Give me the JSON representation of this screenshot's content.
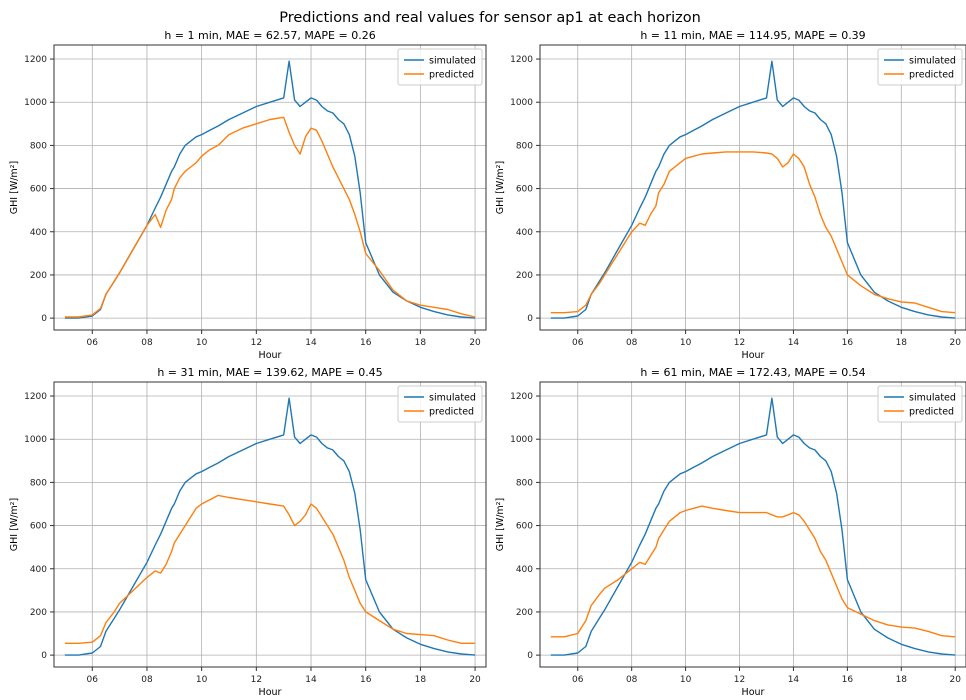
{
  "figure": {
    "title": "Predictions and real values for sensor ap1 at each horizon"
  },
  "colors": {
    "simulated": "#1f77b4",
    "predicted": "#ff7f0e",
    "grid": "#b0b0b0"
  },
  "chart_data": [
    {
      "type": "line",
      "title": "h = 1 min, MAE = 62.57, MAPE = 0.26",
      "xlabel": "Hour",
      "ylabel": "GHI [W/m²]",
      "xlim": [
        4.6,
        20.4
      ],
      "ylim": [
        -55,
        1265
      ],
      "xticks": [
        6,
        8,
        10,
        12,
        14,
        16,
        18,
        20
      ],
      "xticklabels": [
        "06",
        "08",
        "10",
        "12",
        "14",
        "16",
        "18",
        "20"
      ],
      "yticks": [
        0,
        200,
        400,
        600,
        800,
        1000,
        1200
      ],
      "grid": true,
      "legend": "top-right",
      "series": [
        {
          "name": "simulated",
          "x": [
            5,
            5.5,
            6,
            6.3,
            6.5,
            6.8,
            7,
            7.5,
            8,
            8.3,
            8.5,
            8.7,
            8.9,
            9,
            9.2,
            9.4,
            9.6,
            9.8,
            10,
            10.3,
            10.6,
            11,
            11.5,
            12,
            12.5,
            13,
            13.2,
            13.4,
            13.6,
            13.8,
            14,
            14.2,
            14.4,
            14.6,
            14.8,
            15,
            15.2,
            15.4,
            15.6,
            15.8,
            16,
            16.5,
            17,
            17.5,
            18,
            18.5,
            19,
            19.5,
            20
          ],
          "y": [
            0,
            0,
            10,
            40,
            110,
            170,
            210,
            320,
            430,
            510,
            560,
            620,
            680,
            700,
            760,
            800,
            820,
            840,
            850,
            870,
            890,
            920,
            950,
            980,
            1000,
            1020,
            1190,
            1010,
            980,
            1000,
            1020,
            1010,
            980,
            960,
            950,
            920,
            900,
            850,
            750,
            580,
            350,
            200,
            120,
            80,
            50,
            30,
            15,
            5,
            0
          ]
        },
        {
          "name": "predicted",
          "x": [
            5,
            5.5,
            6,
            6.3,
            6.5,
            6.8,
            7,
            7.5,
            8,
            8.3,
            8.5,
            8.7,
            8.9,
            9,
            9.2,
            9.4,
            9.6,
            9.8,
            10,
            10.3,
            10.6,
            11,
            11.5,
            12,
            12.5,
            13,
            13.2,
            13.4,
            13.6,
            13.8,
            14,
            14.2,
            14.4,
            14.6,
            14.8,
            15,
            15.2,
            15.4,
            15.6,
            15.8,
            16,
            16.5,
            17,
            17.5,
            18,
            18.5,
            19,
            19.5,
            20
          ],
          "y": [
            5,
            5,
            15,
            45,
            110,
            170,
            210,
            320,
            430,
            480,
            420,
            500,
            550,
            600,
            650,
            680,
            700,
            720,
            750,
            780,
            800,
            850,
            880,
            900,
            920,
            930,
            860,
            800,
            760,
            840,
            880,
            870,
            820,
            760,
            700,
            650,
            600,
            550,
            480,
            400,
            300,
            220,
            130,
            80,
            60,
            50,
            40,
            20,
            5
          ]
        }
      ]
    },
    {
      "type": "line",
      "title": "h = 11 min, MAE = 114.95, MAPE = 0.39",
      "xlabel": "Hour",
      "ylabel": "GHI [W/m²]",
      "xlim": [
        4.6,
        20.4
      ],
      "ylim": [
        -55,
        1265
      ],
      "xticks": [
        6,
        8,
        10,
        12,
        14,
        16,
        18,
        20
      ],
      "xticklabels": [
        "06",
        "08",
        "10",
        "12",
        "14",
        "16",
        "18",
        "20"
      ],
      "yticks": [
        0,
        200,
        400,
        600,
        800,
        1000,
        1200
      ],
      "grid": true,
      "legend": "top-right",
      "series": [
        {
          "name": "simulated",
          "x": [
            5,
            5.5,
            6,
            6.3,
            6.5,
            6.8,
            7,
            7.5,
            8,
            8.3,
            8.5,
            8.7,
            8.9,
            9,
            9.2,
            9.4,
            9.6,
            9.8,
            10,
            10.3,
            10.6,
            11,
            11.5,
            12,
            12.5,
            13,
            13.2,
            13.4,
            13.6,
            13.8,
            14,
            14.2,
            14.4,
            14.6,
            14.8,
            15,
            15.2,
            15.4,
            15.6,
            15.8,
            16,
            16.5,
            17,
            17.5,
            18,
            18.5,
            19,
            19.5,
            20
          ],
          "y": [
            0,
            0,
            10,
            40,
            110,
            170,
            210,
            320,
            430,
            510,
            560,
            620,
            680,
            700,
            760,
            800,
            820,
            840,
            850,
            870,
            890,
            920,
            950,
            980,
            1000,
            1020,
            1190,
            1010,
            980,
            1000,
            1020,
            1010,
            980,
            960,
            950,
            920,
            900,
            850,
            750,
            580,
            350,
            200,
            120,
            80,
            50,
            30,
            15,
            5,
            0
          ]
        },
        {
          "name": "predicted",
          "x": [
            5,
            5.5,
            6,
            6.3,
            6.5,
            6.8,
            7,
            7.5,
            8,
            8.3,
            8.5,
            8.7,
            8.9,
            9,
            9.2,
            9.4,
            9.6,
            9.8,
            10,
            10.3,
            10.6,
            11,
            11.5,
            12,
            12.5,
            13,
            13.2,
            13.4,
            13.6,
            13.8,
            14,
            14.2,
            14.4,
            14.6,
            14.8,
            15,
            15.2,
            15.4,
            15.6,
            15.8,
            16,
            16.5,
            17,
            17.5,
            18,
            18.5,
            19,
            19.5,
            20
          ],
          "y": [
            25,
            25,
            30,
            60,
            110,
            160,
            200,
            300,
            400,
            440,
            430,
            480,
            520,
            580,
            620,
            680,
            700,
            720,
            740,
            750,
            760,
            765,
            770,
            770,
            770,
            765,
            760,
            740,
            700,
            720,
            760,
            740,
            700,
            620,
            560,
            480,
            420,
            380,
            320,
            260,
            200,
            150,
            110,
            90,
            75,
            70,
            50,
            30,
            25
          ]
        }
      ]
    },
    {
      "type": "line",
      "title": "h = 31 min, MAE = 139.62, MAPE = 0.45",
      "xlabel": "Hour",
      "ylabel": "GHI [W/m²]",
      "xlim": [
        4.6,
        20.4
      ],
      "ylim": [
        -55,
        1265
      ],
      "xticks": [
        6,
        8,
        10,
        12,
        14,
        16,
        18,
        20
      ],
      "xticklabels": [
        "06",
        "08",
        "10",
        "12",
        "14",
        "16",
        "18",
        "20"
      ],
      "yticks": [
        0,
        200,
        400,
        600,
        800,
        1000,
        1200
      ],
      "grid": true,
      "legend": "top-right",
      "series": [
        {
          "name": "simulated",
          "x": [
            5,
            5.5,
            6,
            6.3,
            6.5,
            6.8,
            7,
            7.5,
            8,
            8.3,
            8.5,
            8.7,
            8.9,
            9,
            9.2,
            9.4,
            9.6,
            9.8,
            10,
            10.3,
            10.6,
            11,
            11.5,
            12,
            12.5,
            13,
            13.2,
            13.4,
            13.6,
            13.8,
            14,
            14.2,
            14.4,
            14.6,
            14.8,
            15,
            15.2,
            15.4,
            15.6,
            15.8,
            16,
            16.5,
            17,
            17.5,
            18,
            18.5,
            19,
            19.5,
            20
          ],
          "y": [
            0,
            0,
            10,
            40,
            110,
            170,
            210,
            320,
            430,
            510,
            560,
            620,
            680,
            700,
            760,
            800,
            820,
            840,
            850,
            870,
            890,
            920,
            950,
            980,
            1000,
            1020,
            1190,
            1010,
            980,
            1000,
            1020,
            1010,
            980,
            960,
            950,
            920,
            900,
            850,
            750,
            580,
            350,
            200,
            120,
            80,
            50,
            30,
            15,
            5,
            0
          ]
        },
        {
          "name": "predicted",
          "x": [
            5,
            5.5,
            6,
            6.3,
            6.5,
            6.8,
            7,
            7.5,
            8,
            8.3,
            8.5,
            8.7,
            8.9,
            9,
            9.2,
            9.4,
            9.6,
            9.8,
            10,
            10.3,
            10.6,
            11,
            11.5,
            12,
            12.5,
            13,
            13.2,
            13.4,
            13.6,
            13.8,
            14,
            14.2,
            14.4,
            14.6,
            14.8,
            15,
            15.2,
            15.4,
            15.6,
            15.8,
            16,
            16.5,
            17,
            17.5,
            18,
            18.5,
            19,
            19.5,
            20
          ],
          "y": [
            55,
            55,
            60,
            90,
            150,
            200,
            240,
            300,
            360,
            390,
            380,
            420,
            480,
            520,
            560,
            600,
            640,
            680,
            700,
            720,
            740,
            730,
            720,
            710,
            700,
            690,
            650,
            600,
            620,
            650,
            700,
            680,
            640,
            600,
            560,
            500,
            440,
            360,
            300,
            240,
            200,
            160,
            120,
            100,
            95,
            90,
            70,
            55,
            55
          ]
        }
      ]
    },
    {
      "type": "line",
      "title": "h = 61 min, MAE = 172.43, MAPE = 0.54",
      "xlabel": "Hour",
      "ylabel": "GHI [W/m²]",
      "xlim": [
        4.6,
        20.4
      ],
      "ylim": [
        -55,
        1265
      ],
      "xticks": [
        6,
        8,
        10,
        12,
        14,
        16,
        18,
        20
      ],
      "xticklabels": [
        "06",
        "08",
        "10",
        "12",
        "14",
        "16",
        "18",
        "20"
      ],
      "yticks": [
        0,
        200,
        400,
        600,
        800,
        1000,
        1200
      ],
      "grid": true,
      "legend": "top-right",
      "series": [
        {
          "name": "simulated",
          "x": [
            5,
            5.5,
            6,
            6.3,
            6.5,
            6.8,
            7,
            7.5,
            8,
            8.3,
            8.5,
            8.7,
            8.9,
            9,
            9.2,
            9.4,
            9.6,
            9.8,
            10,
            10.3,
            10.6,
            11,
            11.5,
            12,
            12.5,
            13,
            13.2,
            13.4,
            13.6,
            13.8,
            14,
            14.2,
            14.4,
            14.6,
            14.8,
            15,
            15.2,
            15.4,
            15.6,
            15.8,
            16,
            16.5,
            17,
            17.5,
            18,
            18.5,
            19,
            19.5,
            20
          ],
          "y": [
            0,
            0,
            10,
            40,
            110,
            170,
            210,
            320,
            430,
            510,
            560,
            620,
            680,
            700,
            760,
            800,
            820,
            840,
            850,
            870,
            890,
            920,
            950,
            980,
            1000,
            1020,
            1190,
            1010,
            980,
            1000,
            1020,
            1010,
            980,
            960,
            950,
            920,
            900,
            850,
            750,
            580,
            350,
            200,
            120,
            80,
            50,
            30,
            15,
            5,
            0
          ]
        },
        {
          "name": "predicted",
          "x": [
            5,
            5.5,
            6,
            6.3,
            6.5,
            6.8,
            7,
            7.5,
            8,
            8.3,
            8.5,
            8.7,
            8.9,
            9,
            9.2,
            9.4,
            9.6,
            9.8,
            10,
            10.3,
            10.6,
            11,
            11.5,
            12,
            12.5,
            13,
            13.2,
            13.4,
            13.6,
            13.8,
            14,
            14.2,
            14.4,
            14.6,
            14.8,
            15,
            15.2,
            15.4,
            15.6,
            15.8,
            16,
            16.5,
            17,
            17.5,
            18,
            18.5,
            19,
            19.5,
            20
          ],
          "y": [
            85,
            85,
            100,
            160,
            230,
            280,
            310,
            350,
            400,
            430,
            420,
            460,
            500,
            540,
            580,
            620,
            640,
            660,
            670,
            680,
            690,
            680,
            670,
            660,
            660,
            660,
            650,
            640,
            640,
            650,
            660,
            650,
            620,
            580,
            540,
            480,
            440,
            380,
            320,
            260,
            220,
            190,
            160,
            140,
            130,
            125,
            110,
            90,
            85
          ]
        }
      ]
    }
  ]
}
